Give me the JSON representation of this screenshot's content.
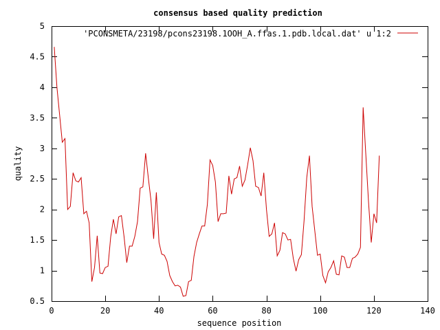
{
  "chart_data": {
    "type": "line",
    "title": "consensus based quality prediction",
    "xlabel": "sequence position",
    "ylabel": "quality",
    "xlim": [
      0,
      140
    ],
    "ylim": [
      0.5,
      5
    ],
    "x_ticks": [
      0,
      20,
      40,
      60,
      80,
      100,
      120,
      140
    ],
    "y_ticks": [
      0.5,
      1,
      1.5,
      2,
      2.5,
      3,
      3.5,
      4,
      4.5,
      5
    ],
    "x_tick_labels": [
      "0",
      "20",
      "40",
      "60",
      "80",
      "100",
      "120",
      "140"
    ],
    "y_tick_labels": [
      "0.5",
      "1",
      "1.5",
      "2",
      "2.5",
      "3",
      "3.5",
      "4",
      "4.5",
      "5"
    ],
    "grid": false,
    "legend_position": "top-right",
    "series": [
      {
        "name": "'PCONSMETA/23198/pcons23198.1OOH_A.ffas.1.pdb.local.dat' u 1:2",
        "color": "#cc0000",
        "x": [
          1,
          2,
          3,
          4,
          5,
          6,
          7,
          8,
          9,
          10,
          11,
          12,
          13,
          14,
          15,
          16,
          17,
          18,
          19,
          20,
          21,
          22,
          23,
          24,
          25,
          26,
          27,
          28,
          29,
          30,
          31,
          32,
          33,
          34,
          35,
          36,
          37,
          38,
          39,
          40,
          41,
          42,
          43,
          44,
          45,
          46,
          47,
          48,
          49,
          50,
          51,
          52,
          53,
          54,
          55,
          56,
          57,
          58,
          59,
          60,
          61,
          62,
          63,
          64,
          65,
          66,
          67,
          68,
          69,
          70,
          71,
          72,
          73,
          74,
          75,
          76,
          77,
          78,
          79,
          80,
          81,
          82,
          83,
          84,
          85,
          86,
          87,
          88,
          89,
          90,
          91,
          92,
          93,
          94,
          95,
          96,
          97,
          98,
          99,
          100,
          101,
          102,
          103,
          104,
          105,
          106,
          107,
          108,
          109,
          110,
          111,
          112,
          113,
          114,
          115,
          116,
          117,
          118,
          119,
          120,
          121,
          122
        ],
        "y": [
          4.66,
          4.0,
          3.55,
          3.1,
          3.16,
          2.0,
          2.05,
          2.6,
          2.47,
          2.45,
          2.52,
          1.93,
          1.97,
          1.78,
          0.82,
          1.05,
          1.57,
          0.96,
          0.95,
          1.05,
          1.07,
          1.55,
          1.84,
          1.6,
          1.88,
          1.9,
          1.55,
          1.13,
          1.4,
          1.4,
          1.56,
          1.8,
          2.35,
          2.37,
          2.92,
          2.52,
          2.15,
          1.52,
          2.28,
          1.46,
          1.27,
          1.25,
          1.15,
          0.92,
          0.82,
          0.75,
          0.76,
          0.73,
          0.58,
          0.59,
          0.82,
          0.84,
          1.23,
          1.46,
          1.6,
          1.73,
          1.73,
          2.08,
          2.81,
          2.72,
          2.45,
          1.8,
          1.93,
          1.93,
          1.94,
          2.55,
          2.25,
          2.5,
          2.52,
          2.71,
          2.38,
          2.48,
          2.73,
          3.01,
          2.8,
          2.38,
          2.36,
          2.22,
          2.6,
          2.0,
          1.56,
          1.6,
          1.78,
          1.24,
          1.33,
          1.62,
          1.6,
          1.5,
          1.51,
          1.2,
          0.99,
          1.18,
          1.26,
          1.82,
          2.52,
          2.88,
          2.05,
          1.65,
          1.25,
          1.27,
          0.92,
          0.8,
          0.98,
          1.05,
          1.16,
          0.94,
          0.93,
          1.24,
          1.22,
          1.05,
          1.05,
          1.2,
          1.22,
          1.27,
          1.38,
          3.67,
          2.9,
          2.13,
          1.46,
          1.93,
          1.78,
          2.88
        ]
      }
    ]
  }
}
